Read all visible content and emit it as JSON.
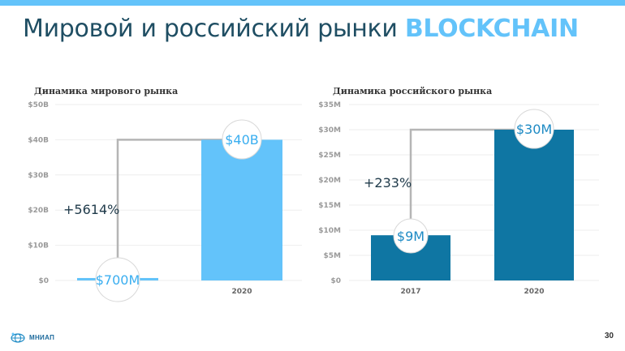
{
  "title": {
    "main": "Мировой и российский рынки",
    "accent": "BLOCKCHAIN"
  },
  "colors": {
    "accent": "#63c3fa",
    "dark_bar": "#0f76a3",
    "light_bar": "#63c3fa",
    "title": "#1f4e63"
  },
  "chart_data": [
    {
      "type": "bar",
      "title": "Динамика мирового рынка",
      "categories": [
        "",
        "2020"
      ],
      "values": [
        0.7,
        40
      ],
      "ylim": [
        0,
        50
      ],
      "yticks": [
        0,
        10,
        20,
        30,
        40,
        50
      ],
      "ytick_labels": [
        "$0",
        "$10B",
        "$20B",
        "$30B",
        "$40B",
        "$50B"
      ],
      "data_labels": [
        "$700M",
        "$40B"
      ],
      "growth_label": "+5614%",
      "bar_color": "#63c3fa"
    },
    {
      "type": "bar",
      "title": "Динамика российского рынка",
      "categories": [
        "2017",
        "2020"
      ],
      "values": [
        9,
        30
      ],
      "ylim": [
        0,
        35
      ],
      "yticks": [
        0,
        5,
        10,
        15,
        20,
        25,
        30,
        35
      ],
      "ytick_labels": [
        "$0",
        "$5M",
        "$10M",
        "$15M",
        "$20M",
        "$25M",
        "$30M",
        "$35M"
      ],
      "data_labels": [
        "$9M",
        "$30M"
      ],
      "growth_label": "+233%",
      "bar_color": "#0f76a3"
    }
  ],
  "footer": {
    "logo_text": "МНИАП",
    "page_number": "30"
  }
}
